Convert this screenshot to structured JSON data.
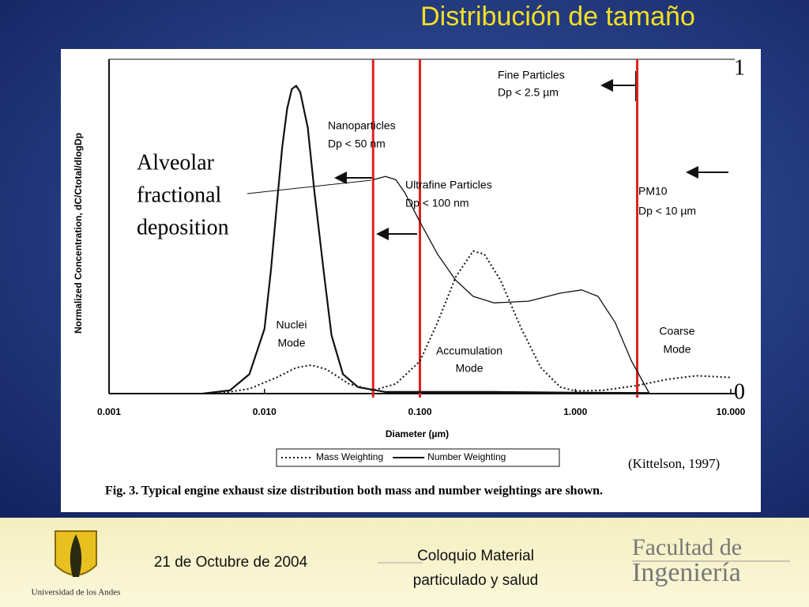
{
  "chart_data": {
    "type": "line",
    "title": "Distribución de tamaño",
    "x_label": "Diameter (µm)",
    "y_label": "Normalized Concentration, dC/Ctotal/dlogDp",
    "xscale": "log",
    "xlim": [
      0.001,
      10
    ],
    "xticks": [
      0.001,
      {
        "value": 0.01,
        "label": "0.010"
      },
      {
        "value": 0.1,
        "label": "0.100"
      },
      {
        "value": 1,
        "label": "1.000"
      },
      {
        "value": 10,
        "label": "10.000"
      }
    ],
    "ylim": [
      0,
      1
    ],
    "y2lim": [
      0,
      1
    ],
    "y2ticks": [
      0,
      1
    ],
    "series": [
      {
        "name": "Mass Weighting",
        "color": "#111111",
        "style": "dotted",
        "x": [
          0.001,
          0.005,
          0.008,
          0.012,
          0.016,
          0.02,
          0.025,
          0.035,
          0.05,
          0.07,
          0.1,
          0.13,
          0.17,
          0.22,
          0.26,
          0.33,
          0.45,
          0.6,
          0.8,
          1,
          1.5,
          2.5,
          4,
          6,
          10
        ],
        "values": [
          0,
          0,
          0.015,
          0.05,
          0.08,
          0.088,
          0.075,
          0.03,
          0.01,
          0.03,
          0.1,
          0.22,
          0.36,
          0.44,
          0.43,
          0.35,
          0.2,
          0.08,
          0.02,
          0.008,
          0.01,
          0.025,
          0.045,
          0.055,
          0.05
        ]
      },
      {
        "name": "Number Weighting",
        "color": "#111111",
        "style": "solid",
        "x": [
          0.004,
          0.006,
          0.008,
          0.01,
          0.011,
          0.012,
          0.013,
          0.014,
          0.015,
          0.016,
          0.017,
          0.019,
          0.021,
          0.024,
          0.027,
          0.032,
          0.04,
          0.06,
          0.1,
          0.3,
          1,
          3
        ],
        "values": [
          0,
          0.01,
          0.06,
          0.2,
          0.38,
          0.58,
          0.76,
          0.88,
          0.94,
          0.95,
          0.93,
          0.82,
          0.62,
          0.38,
          0.18,
          0.06,
          0.02,
          0.005,
          0.005,
          0.005,
          0.003,
          0.002
        ]
      },
      {
        "color": "#111111",
        "style": "thin",
        "axis": "y2",
        "x": [
          0.05,
          0.06,
          0.07,
          0.08,
          0.1,
          0.13,
          0.17,
          0.22,
          0.3,
          0.5,
          0.8,
          1.1,
          1.4,
          1.8,
          2.3,
          3
        ],
        "values": [
          0.66,
          0.67,
          0.66,
          0.62,
          0.53,
          0.43,
          0.35,
          0.3,
          0.28,
          0.285,
          0.31,
          0.32,
          0.3,
          0.22,
          0.1,
          0
        ]
      }
    ],
    "vlines": {
      "color": "#e02020",
      "values": [
        0.05,
        0.1,
        2.5
      ]
    },
    "annotations": [
      [
        "Fine Particles",
        "Dp < 2.5 µm"
      ],
      [
        "Nanoparticles",
        "Dp < 50 nm"
      ],
      [
        "Ultrafine Particles",
        "Dp < 100 nm"
      ],
      [
        "PM10",
        "Dp < 10 µm"
      ],
      [
        "Nuclei",
        "Mode"
      ],
      [
        "Accumulation",
        "Mode"
      ],
      [
        "Coarse",
        "Mode"
      ],
      [
        "Alveolar",
        "fractional",
        "deposition"
      ]
    ],
    "source": "(Kittelson, 1997)",
    "caption": "Fig. 3.  Typical engine exhaust size distribution both mass and number weightings are shown."
  },
  "footer": {
    "university": "Universidad de los Andes",
    "date": "21 de Octubre de 2004",
    "event": [
      "Coloquio Material",
      "particulado y salud"
    ],
    "faculty": [
      "Facultad de",
      "Ingeniería"
    ]
  }
}
